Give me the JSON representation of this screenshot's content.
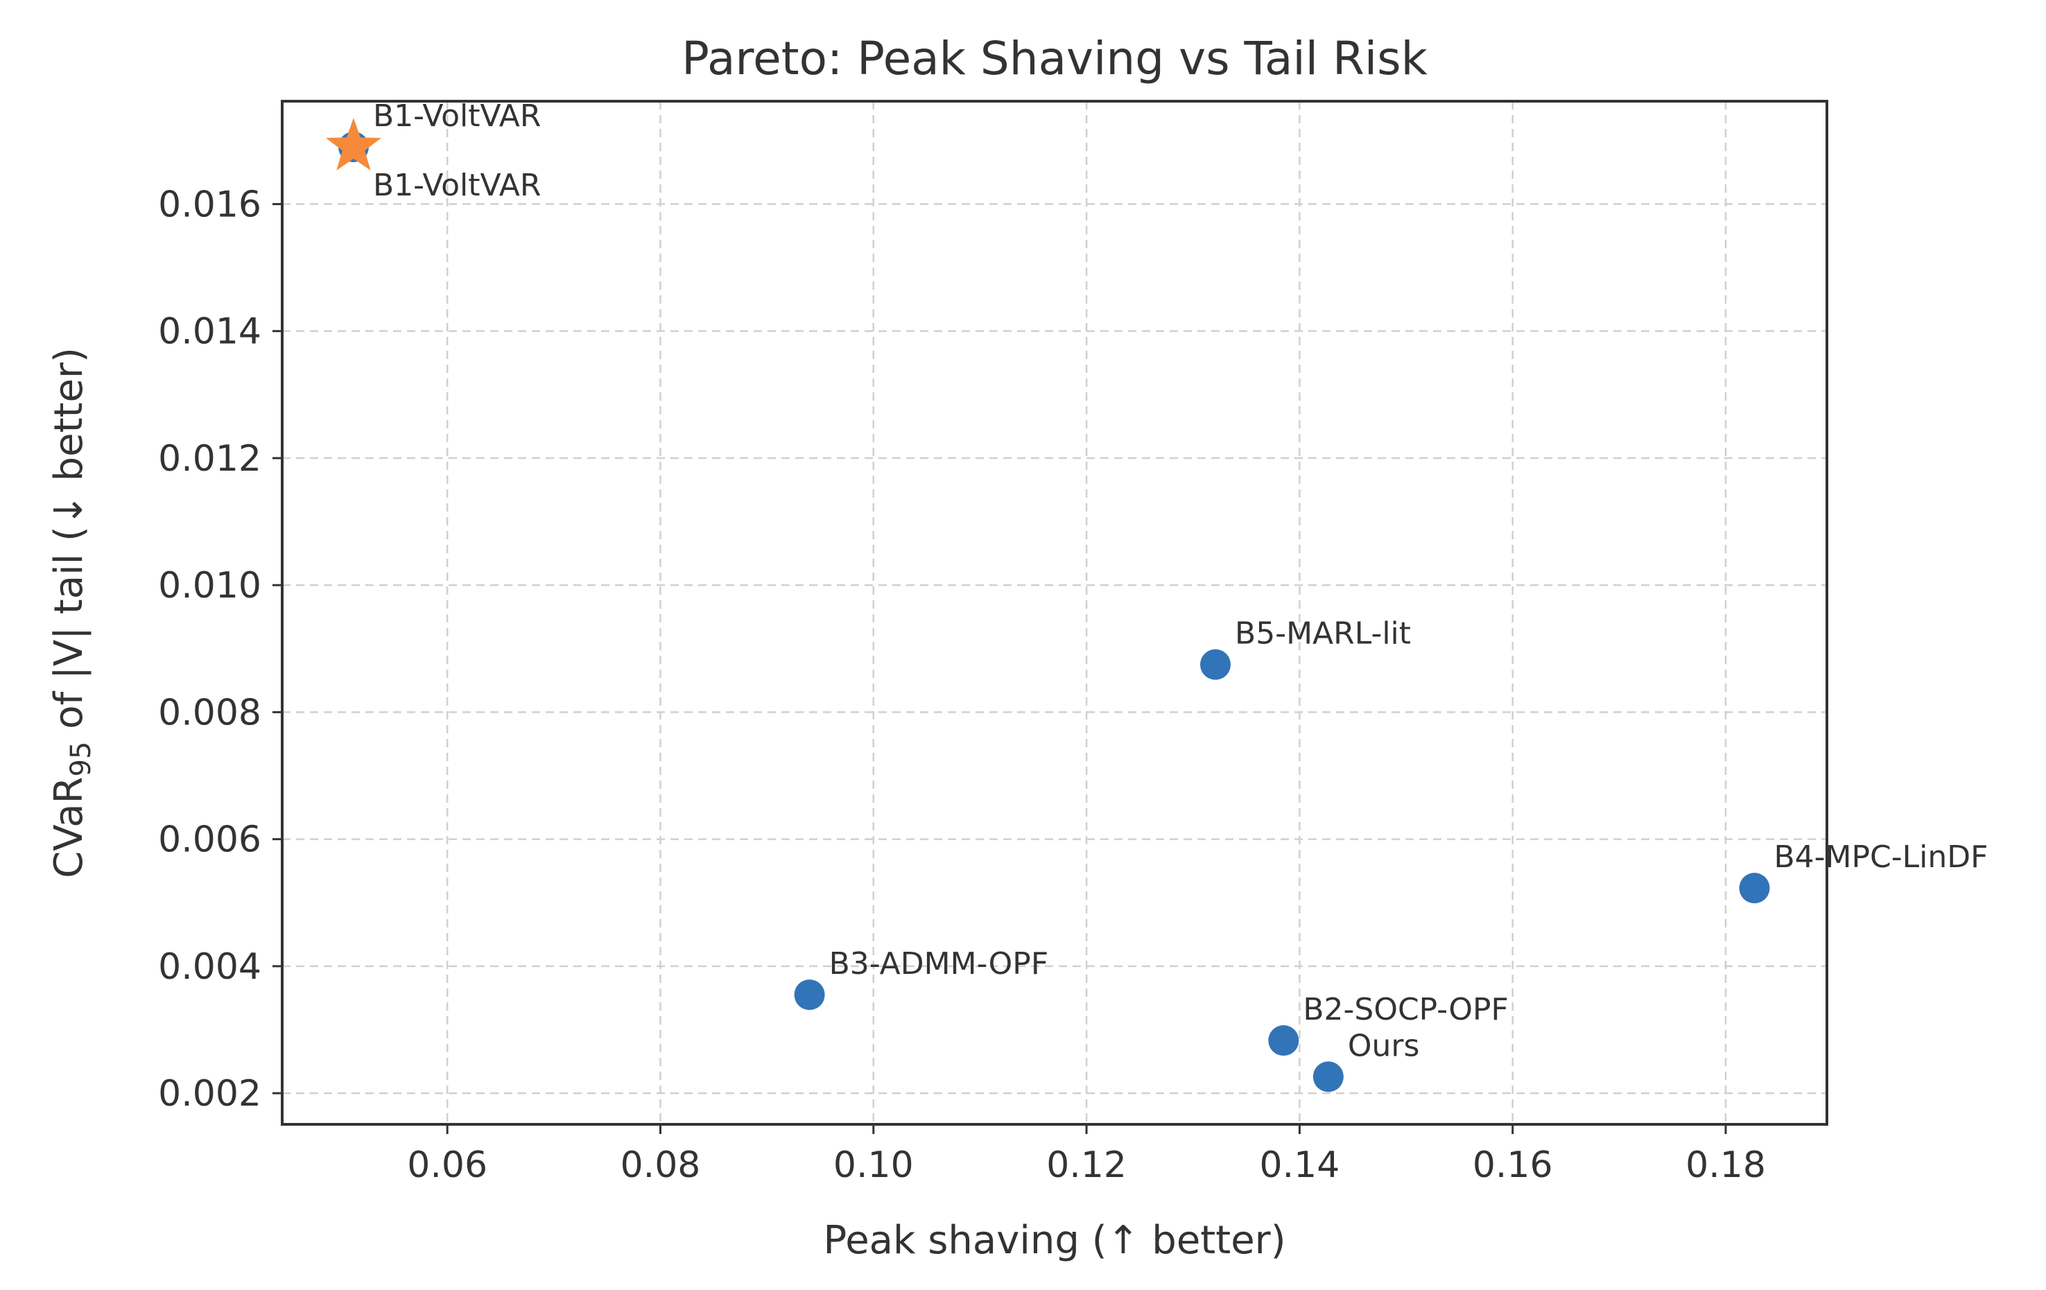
{
  "chart_data": {
    "type": "scatter",
    "title": "Pareto: Peak Shaving vs Tail Risk",
    "xlabel": "Peak shaving (↑ better)",
    "ylabel": {
      "prefix": "CVaR",
      "subscript": "95",
      "suffix": " of |V| tail (↓ better)"
    },
    "xlim": [
      0.0445,
      0.1895
    ],
    "ylim": [
      0.00151,
      0.01762
    ],
    "xticks": [
      {
        "value": 0.06,
        "label": "0.06"
      },
      {
        "value": 0.08,
        "label": "0.08"
      },
      {
        "value": 0.1,
        "label": "0.10"
      },
      {
        "value": 0.12,
        "label": "0.12"
      },
      {
        "value": 0.14,
        "label": "0.14"
      },
      {
        "value": 0.16,
        "label": "0.16"
      },
      {
        "value": 0.18,
        "label": "0.18"
      }
    ],
    "yticks": [
      {
        "value": 0.002,
        "label": "0.002"
      },
      {
        "value": 0.004,
        "label": "0.004"
      },
      {
        "value": 0.006,
        "label": "0.006"
      },
      {
        "value": 0.008,
        "label": "0.008"
      },
      {
        "value": 0.01,
        "label": "0.010"
      },
      {
        "value": 0.012,
        "label": "0.012"
      },
      {
        "value": 0.014,
        "label": "0.014"
      },
      {
        "value": 0.016,
        "label": "0.016"
      }
    ],
    "grid": true,
    "colors": {
      "point": "#3274b8",
      "star": "#f58a3b",
      "frame": "#333333",
      "grid": "#d0d0d0"
    },
    "points": [
      {
        "name": "B1-VoltVAR",
        "x": 0.0512,
        "y": 0.0169,
        "label": "B1-VoltVAR",
        "marker": "circle"
      },
      {
        "name": "B2-SOCP-OPF",
        "x": 0.1385,
        "y": 0.00283,
        "label": "B2-SOCP-OPF",
        "marker": "circle"
      },
      {
        "name": "B3-ADMM-OPF",
        "x": 0.094,
        "y": 0.00355,
        "label": "B3-ADMM-OPF",
        "marker": "circle"
      },
      {
        "name": "B4-MPC-LinDF",
        "x": 0.1827,
        "y": 0.00523,
        "label": "B4-MPC-LinDF",
        "marker": "circle"
      },
      {
        "name": "B5-MARL-lit",
        "x": 0.1321,
        "y": 0.00875,
        "label": "B5-MARL-lit",
        "marker": "circle"
      },
      {
        "name": "Ours",
        "x": 0.1427,
        "y": 0.00226,
        "label": "Ours",
        "marker": "circle"
      }
    ],
    "highlight": {
      "name": "B1-VoltVAR",
      "x": 0.0512,
      "y": 0.0169,
      "label": "B1-VoltVAR",
      "marker": "star"
    }
  }
}
